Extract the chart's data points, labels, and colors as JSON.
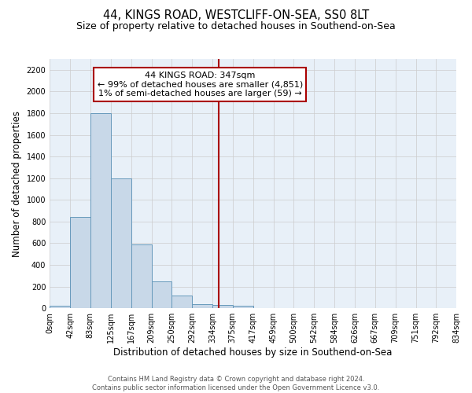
{
  "title": "44, KINGS ROAD, WESTCLIFF-ON-SEA, SS0 8LT",
  "subtitle": "Size of property relative to detached houses in Southend-on-Sea",
  "xlabel": "Distribution of detached houses by size in Southend-on-Sea",
  "ylabel": "Number of detached properties",
  "bin_edges": [
    0,
    42,
    83,
    125,
    167,
    209,
    250,
    292,
    334,
    375,
    417,
    459,
    500,
    542,
    584,
    626,
    667,
    709,
    751,
    792,
    834
  ],
  "bar_heights": [
    25,
    840,
    1800,
    1200,
    590,
    250,
    120,
    40,
    30,
    25,
    0,
    0,
    0,
    0,
    0,
    0,
    0,
    0,
    0,
    0
  ],
  "bar_color": "#c8d8e8",
  "bar_edgecolor": "#6699bb",
  "vline_x": 347,
  "vline_color": "#aa0000",
  "ylim": [
    0,
    2300
  ],
  "yticks": [
    0,
    200,
    400,
    600,
    800,
    1000,
    1200,
    1400,
    1600,
    1800,
    2000,
    2200
  ],
  "xtick_labels": [
    "0sqm",
    "42sqm",
    "83sqm",
    "125sqm",
    "167sqm",
    "209sqm",
    "250sqm",
    "292sqm",
    "334sqm",
    "375sqm",
    "417sqm",
    "459sqm",
    "500sqm",
    "542sqm",
    "584sqm",
    "626sqm",
    "667sqm",
    "709sqm",
    "751sqm",
    "792sqm",
    "834sqm"
  ],
  "annotation_title": "44 KINGS ROAD: 347sqm",
  "annotation_line1": "← 99% of detached houses are smaller (4,851)",
  "annotation_line2": "1% of semi-detached houses are larger (59) →",
  "footer_line1": "Contains HM Land Registry data © Crown copyright and database right 2024.",
  "footer_line2": "Contains public sector information licensed under the Open Government Licence v3.0.",
  "grid_color": "#cccccc",
  "bg_color": "#e8f0f8",
  "title_fontsize": 10.5,
  "subtitle_fontsize": 9,
  "xlabel_fontsize": 8.5,
  "ylabel_fontsize": 8.5,
  "tick_fontsize": 7
}
